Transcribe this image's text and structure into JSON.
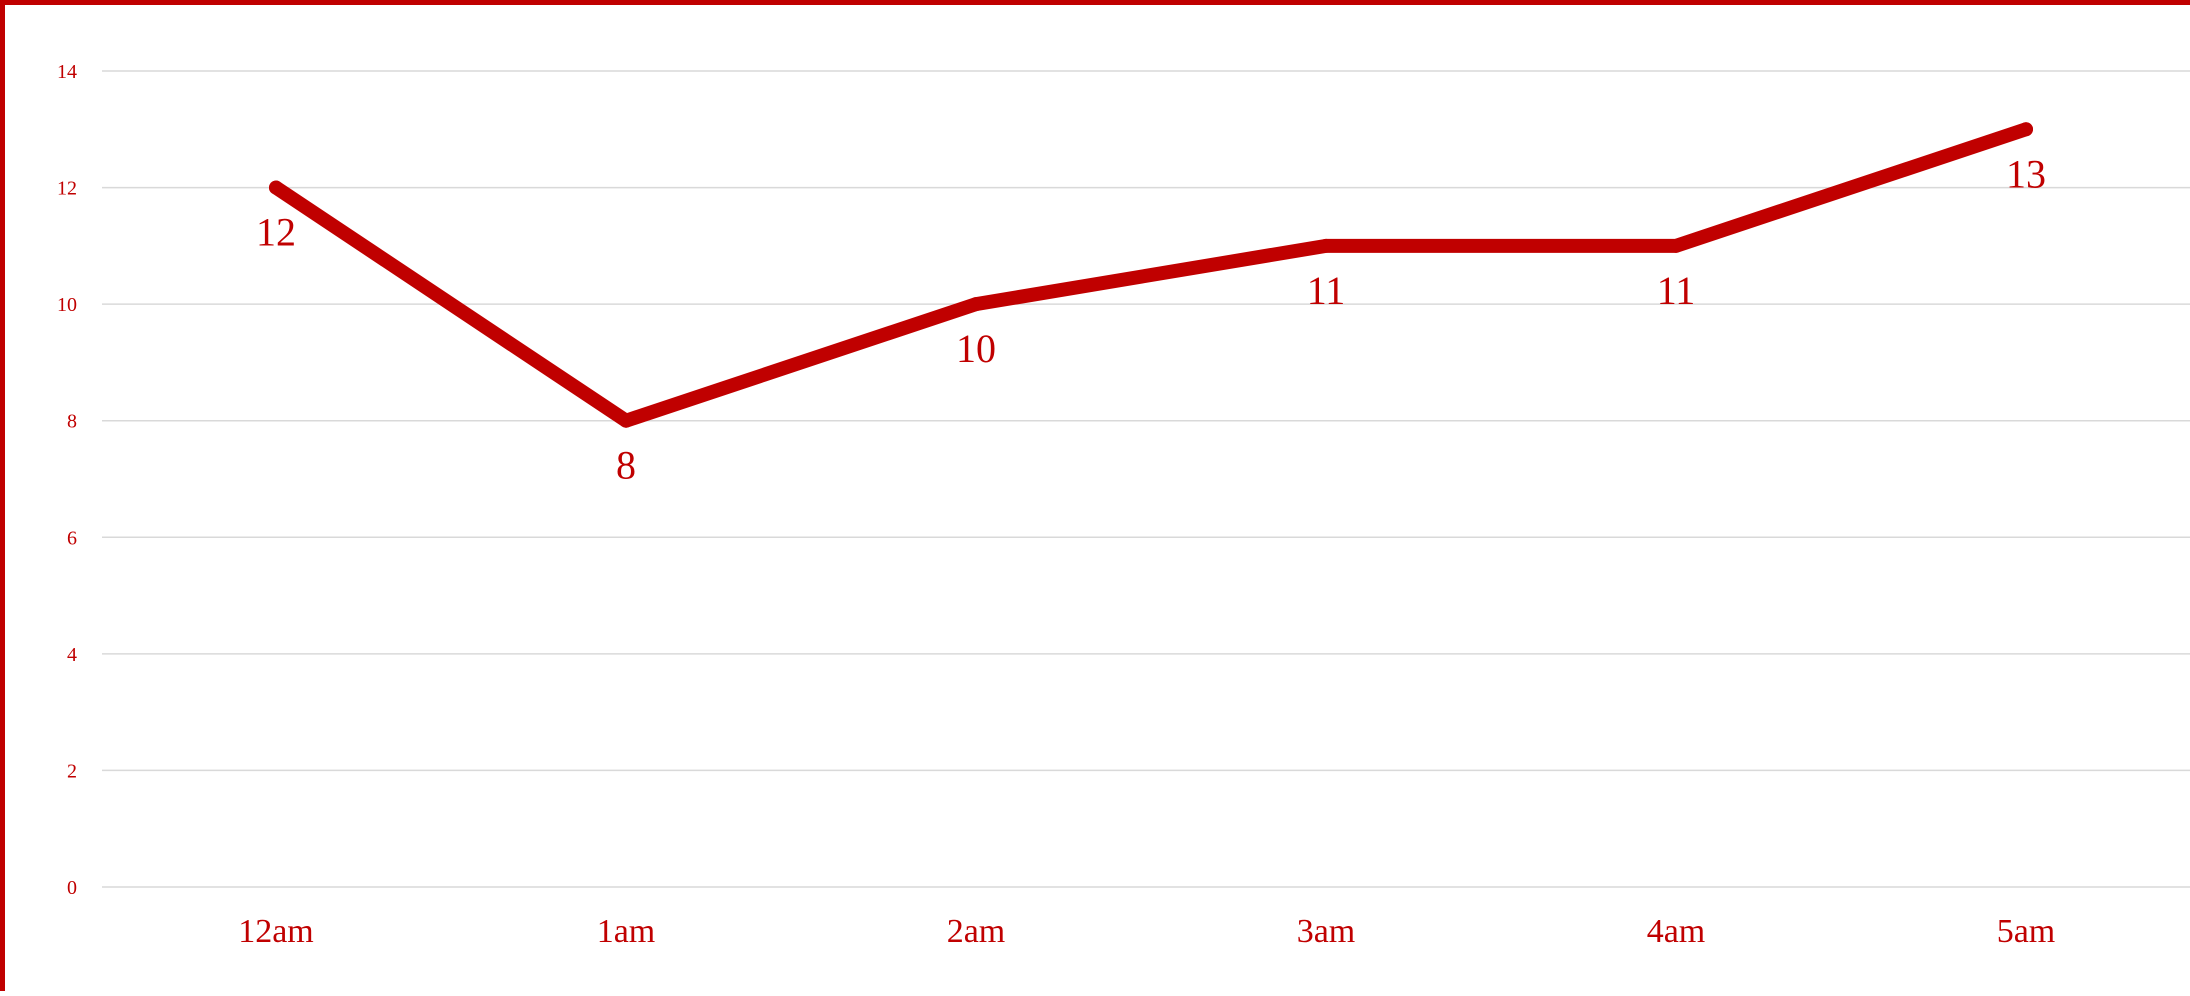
{
  "colors": {
    "series": "#c00000",
    "text": "#c00000",
    "grid": "#d9d9d9",
    "background": "#ffffff"
  },
  "chart_data": {
    "type": "line",
    "categories": [
      "12am",
      "1am",
      "2am",
      "3am",
      "4am",
      "5am"
    ],
    "series": [
      {
        "values": [
          12,
          8,
          10,
          11,
          11,
          13
        ]
      }
    ],
    "yticks": [
      0,
      2,
      4,
      6,
      8,
      10,
      12,
      14
    ],
    "ylim": [
      0,
      14
    ],
    "grid": "horizontal",
    "legend": "none",
    "data_labels": "below"
  }
}
